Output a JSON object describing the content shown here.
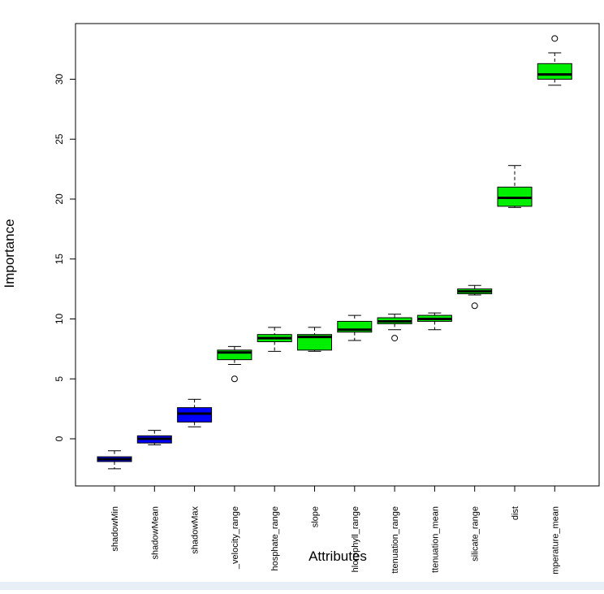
{
  "chart_data": {
    "type": "boxplot",
    "title": "",
    "xlabel": "Attributes",
    "ylabel": "Importance",
    "ylim": [
      -4,
      34.5
    ],
    "yticks": [
      0,
      5,
      10,
      15,
      20,
      25,
      30
    ],
    "colors": {
      "shadow": "#0000ff",
      "confirmed": "#00ee00",
      "outline": "#000000"
    },
    "categories": [
      "shadowMin",
      "shadowMean",
      "shadowMax",
      "_velocity_range",
      "hosphate_range",
      "slope",
      "hlorophyll_range",
      "ttenuation_range",
      "ttenuation_mean",
      "silicate_range",
      "dist",
      "mperature_mean"
    ],
    "boxes": [
      {
        "label": "shadowMin",
        "group": "shadow",
        "whisker_low": -2.5,
        "q1": -1.9,
        "median": -1.7,
        "q3": -1.5,
        "whisker_high": -1.0,
        "outliers": []
      },
      {
        "label": "shadowMean",
        "group": "shadow",
        "whisker_low": -0.5,
        "q1": -0.35,
        "median": 0.0,
        "q3": 0.25,
        "whisker_high": 0.7,
        "outliers": []
      },
      {
        "label": "shadowMax",
        "group": "shadow",
        "whisker_low": 1.0,
        "q1": 1.4,
        "median": 2.1,
        "q3": 2.6,
        "whisker_high": 3.3,
        "outliers": []
      },
      {
        "label": "_velocity_range",
        "group": "confirmed",
        "whisker_low": 6.2,
        "q1": 6.6,
        "median": 7.2,
        "q3": 7.4,
        "whisker_high": 7.7,
        "outliers": [
          5.0
        ]
      },
      {
        "label": "hosphate_range",
        "group": "confirmed",
        "whisker_low": 7.3,
        "q1": 8.1,
        "median": 8.4,
        "q3": 8.7,
        "whisker_high": 9.3,
        "outliers": []
      },
      {
        "label": "slope",
        "group": "confirmed",
        "whisker_low": 7.3,
        "q1": 7.4,
        "median": 8.5,
        "q3": 8.7,
        "whisker_high": 9.3,
        "outliers": []
      },
      {
        "label": "hlorophyll_range",
        "group": "confirmed",
        "whisker_low": 8.2,
        "q1": 8.9,
        "median": 9.1,
        "q3": 9.8,
        "whisker_high": 10.3,
        "outliers": []
      },
      {
        "label": "ttenuation_range",
        "group": "confirmed",
        "whisker_low": 9.1,
        "q1": 9.6,
        "median": 9.8,
        "q3": 10.1,
        "whisker_high": 10.4,
        "outliers": [
          8.4
        ]
      },
      {
        "label": "ttenuation_mean",
        "group": "confirmed",
        "whisker_low": 9.1,
        "q1": 9.8,
        "median": 10.0,
        "q3": 10.3,
        "whisker_high": 10.5,
        "outliers": []
      },
      {
        "label": "silicate_range",
        "group": "confirmed",
        "whisker_low": 12.0,
        "q1": 12.1,
        "median": 12.3,
        "q3": 12.5,
        "whisker_high": 12.8,
        "outliers": [
          11.1
        ]
      },
      {
        "label": "dist",
        "group": "confirmed",
        "whisker_low": 19.3,
        "q1": 19.4,
        "median": 20.1,
        "q3": 21.0,
        "whisker_high": 22.8,
        "outliers": []
      },
      {
        "label": "mperature_mean",
        "group": "confirmed",
        "whisker_low": 29.5,
        "q1": 30.0,
        "median": 30.4,
        "q3": 31.3,
        "whisker_high": 32.2,
        "outliers": [
          33.4
        ]
      }
    ]
  }
}
